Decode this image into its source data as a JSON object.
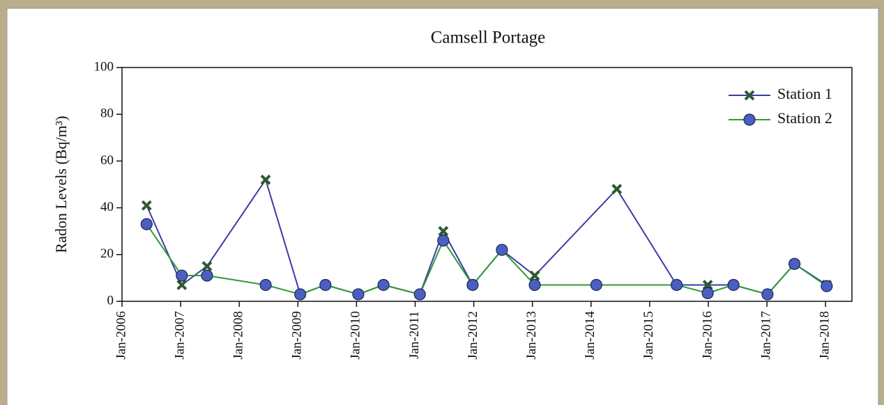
{
  "chart_data": {
    "type": "line",
    "title": "Camsell Portage",
    "ylabel": "Radon Levels (Bq/m³)",
    "xlim": [
      2006,
      2018.45
    ],
    "xticks": [
      {
        "value": 2006,
        "label": "Jan-2006"
      },
      {
        "value": 2007,
        "label": "Jan-2007"
      },
      {
        "value": 2008,
        "label": "Jan-2008"
      },
      {
        "value": 2009,
        "label": "Jan-2009"
      },
      {
        "value": 2010,
        "label": "Jan-2010"
      },
      {
        "value": 2011,
        "label": "Jan-2011"
      },
      {
        "value": 2012,
        "label": "Jan-2012"
      },
      {
        "value": 2013,
        "label": "Jan-2013"
      },
      {
        "value": 2014,
        "label": "Jan-2014"
      },
      {
        "value": 2015,
        "label": "Jan-2015"
      },
      {
        "value": 2016,
        "label": "Jan-2016"
      },
      {
        "value": 2017,
        "label": "Jan-2017"
      },
      {
        "value": 2018,
        "label": "Jan-2018"
      }
    ],
    "ylim": [
      0,
      100
    ],
    "yticks": [
      0,
      20,
      40,
      60,
      80,
      100
    ],
    "legend": "upper right",
    "series": [
      {
        "name": "Station 1",
        "color": "#3b3ba6",
        "marker": "x",
        "marker_color": "#2e5a32",
        "x": [
          2006.42,
          2007.02,
          2007.45,
          2008.45,
          2009.04,
          2009.47,
          2010.03,
          2010.46,
          2011.08,
          2011.48,
          2011.98,
          2012.48,
          2013.04,
          2014.44,
          2015.46,
          2015.99,
          2016.43,
          2017.01,
          2017.47,
          2018.02
        ],
        "values": [
          41,
          7,
          15,
          52,
          3,
          7,
          3,
          7,
          3,
          30,
          7,
          22,
          11,
          48,
          7,
          7,
          7,
          3,
          16,
          7
        ]
      },
      {
        "name": "Station 2",
        "color": "#2f9a36",
        "marker": "circle",
        "marker_color": "#4b5fc2",
        "x": [
          2006.42,
          2007.02,
          2007.45,
          2008.45,
          2009.04,
          2009.47,
          2010.03,
          2010.46,
          2011.08,
          2011.48,
          2011.98,
          2012.48,
          2013.04,
          2014.09,
          2015.46,
          2015.99,
          2016.43,
          2017.01,
          2017.47,
          2018.02
        ],
        "values": [
          33,
          11,
          11,
          7,
          3,
          7,
          3,
          7,
          3,
          26,
          7,
          22,
          7,
          7,
          7,
          3.5,
          7,
          3,
          16,
          6.5
        ]
      }
    ]
  }
}
